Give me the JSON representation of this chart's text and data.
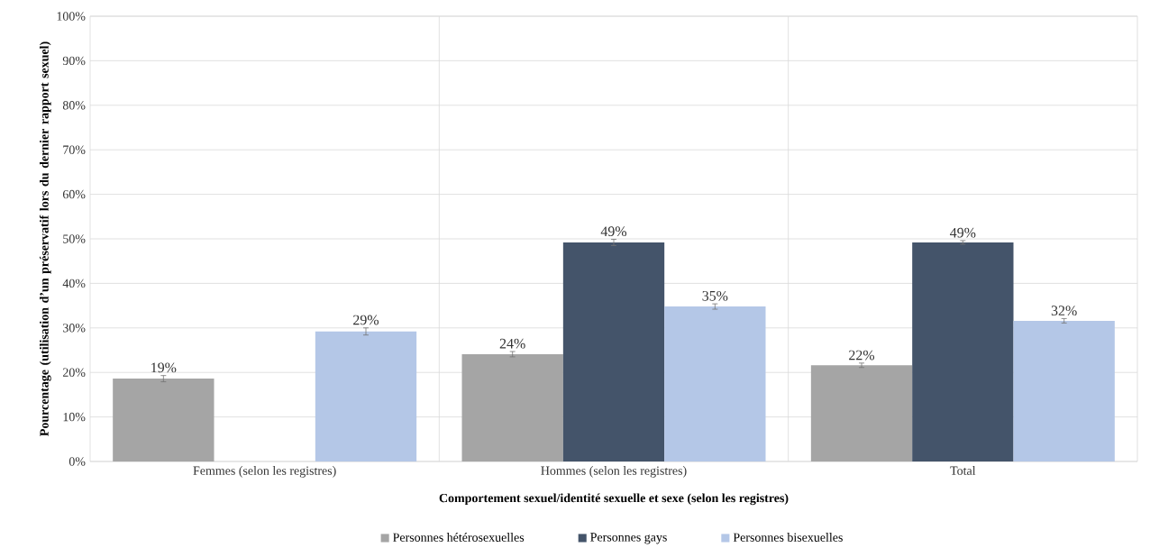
{
  "chart_data": {
    "type": "bar",
    "xlabel": "Comportement sexuel/identité sexuelle et sexe (selon les registres)",
    "ylabel": "Pourcentage (utilisation d’un préservatif lors du dernier rapport sexuel)",
    "categories": [
      "Femmes (selon les registres)",
      "Hommes (selon les registres)",
      "Total"
    ],
    "series": [
      {
        "name": "Personnes hétérosexuelles",
        "color": "#a5a5a5",
        "values": [
          18.6,
          24.1,
          21.6
        ],
        "errors": [
          0.7,
          0.6,
          0.5
        ],
        "value_labels": [
          "19%",
          "24%",
          "22%"
        ]
      },
      {
        "name": "Personnes gays",
        "color": "#44546a",
        "values": [
          null,
          49.2,
          49.2
        ],
        "errors": [
          null,
          0.7,
          0.4
        ],
        "value_labels": [
          null,
          "49%",
          "49%"
        ]
      },
      {
        "name": "Personnes bisexuelles",
        "color": "#b4c7e7",
        "values": [
          29.2,
          34.8,
          31.6
        ],
        "errors": [
          0.8,
          0.6,
          0.5
        ],
        "value_labels": [
          "29%",
          "35%",
          "32%"
        ]
      }
    ],
    "ylim": [
      0,
      100
    ],
    "yticks": [
      {
        "value": 0,
        "label": "0%"
      },
      {
        "value": 10,
        "label": "10%"
      },
      {
        "value": 20,
        "label": "20%"
      },
      {
        "value": 30,
        "label": "30%"
      },
      {
        "value": 40,
        "label": "40%"
      },
      {
        "value": 50,
        "label": "50%"
      },
      {
        "value": 60,
        "label": "60%"
      },
      {
        "value": 70,
        "label": "70%"
      },
      {
        "value": 80,
        "label": "80%"
      },
      {
        "value": 90,
        "label": "90%"
      },
      {
        "value": 100,
        "label": "100%"
      }
    ],
    "grid": true,
    "legend": "bottom"
  }
}
